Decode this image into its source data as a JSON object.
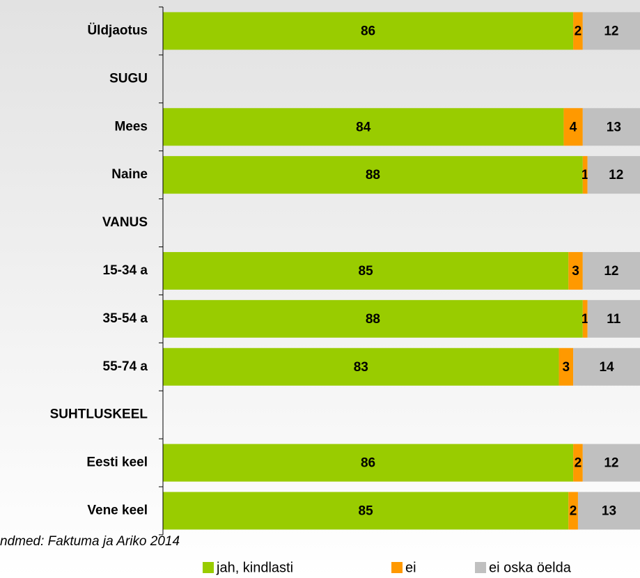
{
  "chart_data": {
    "type": "stacked_barh",
    "categories": [
      "Üldjaotus",
      "SUGU",
      "Mees",
      "Naine",
      "VANUS",
      "15-34 a",
      "35-54 a",
      "55-74 a",
      "SUHTLUSKEEL",
      "Eesti keel",
      "Vene keel"
    ],
    "series": [
      {
        "name": "jah, kindlasti",
        "color": "#99cc00",
        "values": [
          86,
          null,
          84,
          88,
          null,
          85,
          88,
          83,
          null,
          86,
          85
        ]
      },
      {
        "name": "ei",
        "color": "#ff9900",
        "values": [
          2,
          null,
          4,
          1,
          null,
          3,
          1,
          3,
          null,
          2,
          2
        ]
      },
      {
        "name": "ei oska öelda",
        "color": "#c0c0c0",
        "values": [
          12,
          null,
          13,
          12,
          null,
          12,
          11,
          14,
          null,
          12,
          13
        ]
      }
    ],
    "xlim": [
      0,
      100
    ],
    "source": "ndmed: Faktuma ja Ariko 2014"
  }
}
